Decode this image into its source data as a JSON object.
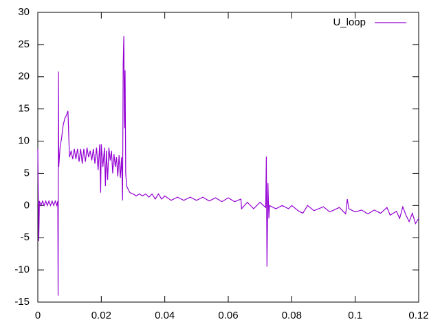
{
  "chart_data": {
    "type": "line",
    "x": [
      0,
      0.0003,
      0.0005,
      0.001,
      0.0015,
      0.002,
      0.0025,
      0.003,
      0.0035,
      0.004,
      0.0045,
      0.005,
      0.0055,
      0.006,
      0.0063,
      0.0064,
      0.0065,
      0.0066,
      0.007,
      0.0075,
      0.008,
      0.0085,
      0.009,
      0.0095,
      0.0098,
      0.01,
      0.0105,
      0.011,
      0.0115,
      0.012,
      0.0125,
      0.013,
      0.0135,
      0.014,
      0.0145,
      0.015,
      0.0155,
      0.016,
      0.0165,
      0.017,
      0.0175,
      0.018,
      0.0185,
      0.019,
      0.0195,
      0.0198,
      0.02,
      0.0205,
      0.021,
      0.0213,
      0.0216,
      0.022,
      0.0224,
      0.0228,
      0.0232,
      0.0236,
      0.024,
      0.0244,
      0.0248,
      0.0252,
      0.0256,
      0.026,
      0.0264,
      0.0267,
      0.0269,
      0.0271,
      0.0273,
      0.0275,
      0.0277,
      0.028,
      0.0285,
      0.029,
      0.03,
      0.031,
      0.032,
      0.033,
      0.034,
      0.035,
      0.036,
      0.037,
      0.038,
      0.039,
      0.04,
      0.042,
      0.044,
      0.046,
      0.048,
      0.05,
      0.052,
      0.054,
      0.056,
      0.058,
      0.06,
      0.062,
      0.064,
      0.0642,
      0.066,
      0.068,
      0.07,
      0.0718,
      0.072,
      0.0722,
      0.0725,
      0.0728,
      0.073,
      0.075,
      0.077,
      0.079,
      0.08,
      0.082,
      0.0835,
      0.085,
      0.087,
      0.09,
      0.092,
      0.095,
      0.097,
      0.0975,
      0.098,
      0.1,
      0.102,
      0.104,
      0.106,
      0.108,
      0.11,
      0.111,
      0.113,
      0.114,
      0.115,
      0.116,
      0.117,
      0.118,
      0.119,
      0.12
    ],
    "series": [
      {
        "name": "U_loop",
        "color": "#9400d3",
        "values": [
          8.8,
          -5.5,
          0.7,
          0,
          0.7,
          0,
          0.7,
          0,
          0.7,
          0,
          0.7,
          0,
          0.7,
          0,
          0.7,
          -14,
          20.8,
          6,
          9,
          10.5,
          12.5,
          13.5,
          14,
          14.7,
          10,
          7.5,
          8.5,
          7.2,
          8.8,
          7.2,
          8.8,
          6.8,
          8.8,
          6.5,
          8.8,
          6.8,
          9,
          7.5,
          8.5,
          7,
          8.8,
          6.5,
          9,
          5.5,
          9.5,
          2,
          9.5,
          6,
          9,
          3,
          8.5,
          4,
          9,
          7,
          8.5,
          5,
          8,
          6,
          7.5,
          4.5,
          7.8,
          4.3,
          7.5,
          0.8,
          22,
          26.3,
          12,
          21,
          5,
          3,
          2.5,
          2,
          1.8,
          1.5,
          1.8,
          1.5,
          1.8,
          1.3,
          1.8,
          1,
          1.8,
          1,
          1.5,
          0.8,
          1.3,
          0.8,
          1.3,
          0.8,
          1.3,
          0.7,
          1.2,
          0.6,
          1.2,
          0.6,
          1,
          -0.5,
          0.5,
          -0.5,
          0.5,
          -0.3,
          7.6,
          -9.5,
          3.5,
          -2,
          0,
          -0.5,
          0,
          -0.5,
          0,
          -0.8,
          -1.2,
          0,
          -0.8,
          -0.2,
          -1,
          -0.3,
          -1.3,
          1,
          -0.5,
          -1,
          -0.7,
          -1.3,
          -0.7,
          -1.2,
          -0.3,
          -1.5,
          -0.9,
          -2,
          -0.2,
          -1.5,
          -2.5,
          -1.2,
          -2.8,
          -2
        ]
      }
    ],
    "xlim": [
      0,
      0.12
    ],
    "ylim": [
      -15,
      30
    ],
    "xticks": [
      0,
      0.02,
      0.04,
      0.06,
      0.08,
      0.1,
      0.12
    ],
    "yticks": [
      -15,
      -10,
      -5,
      0,
      5,
      10,
      15,
      20,
      25,
      30
    ],
    "grid": false,
    "legend": "top-right"
  }
}
